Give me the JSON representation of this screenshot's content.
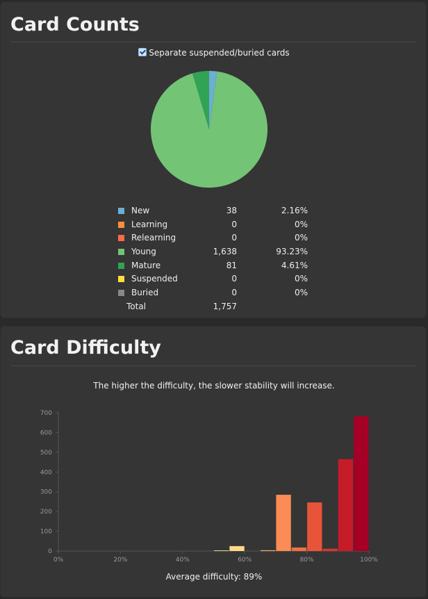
{
  "card_counts": {
    "title": "Card Counts",
    "toggle_label": "Separate suspended/buried cards",
    "toggle_checked": true,
    "total_label": "Total",
    "total_count": "1,757"
  },
  "card_difficulty": {
    "title": "Card Difficulty",
    "subtitle": "The higher the difficulty, the slower stability will increase.",
    "average_label": "Average difficulty: 89%"
  },
  "chart_data": [
    {
      "type": "pie",
      "title": "Card Counts",
      "slices": [
        {
          "name": "New",
          "value": 38,
          "count_label": "38",
          "percent_label": "2.16%",
          "color": "#6baed6"
        },
        {
          "name": "Learning",
          "value": 0,
          "count_label": "0",
          "percent_label": "0%",
          "color": "#fd8d3c"
        },
        {
          "name": "Relearning",
          "value": 0,
          "count_label": "0",
          "percent_label": "0%",
          "color": "#fb6a4a"
        },
        {
          "name": "Young",
          "value": 1638,
          "count_label": "1,638",
          "percent_label": "93.23%",
          "color": "#74c476"
        },
        {
          "name": "Mature",
          "value": 81,
          "count_label": "81",
          "percent_label": "4.61%",
          "color": "#31a354"
        },
        {
          "name": "Suspended",
          "value": 0,
          "count_label": "0",
          "percent_label": "0%",
          "color": "#ffdc41"
        },
        {
          "name": "Buried",
          "value": 0,
          "count_label": "0",
          "percent_label": "0%",
          "color": "#888888"
        }
      ],
      "legend_placement": "bottom"
    },
    {
      "type": "bar",
      "title": "Card Difficulty",
      "x_ticks": [
        "0%",
        "20%",
        "40%",
        "60%",
        "80%",
        "100%"
      ],
      "xlim": [
        0,
        100
      ],
      "y_ticks": [
        "0",
        "100",
        "200",
        "300",
        "400",
        "500",
        "600",
        "700"
      ],
      "ylim": [
        0,
        700
      ],
      "bin_width": 5,
      "bars": [
        {
          "x": 50,
          "value": 2,
          "color": "#e6d690"
        },
        {
          "x": 55,
          "value": 25,
          "color": "#fdd88a"
        },
        {
          "x": 65,
          "value": 4,
          "color": "#fdb06a"
        },
        {
          "x": 70,
          "value": 285,
          "color": "#fb8c55"
        },
        {
          "x": 75,
          "value": 18,
          "color": "#f07045"
        },
        {
          "x": 80,
          "value": 246,
          "color": "#e8543a"
        },
        {
          "x": 85,
          "value": 12,
          "color": "#d8352e"
        },
        {
          "x": 90,
          "value": 465,
          "color": "#c61b28"
        },
        {
          "x": 95,
          "value": 682,
          "color": "#a50026"
        }
      ],
      "grid": false
    }
  ]
}
